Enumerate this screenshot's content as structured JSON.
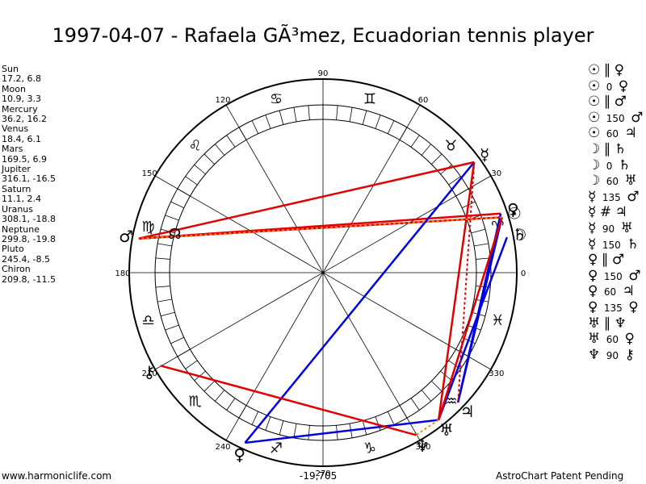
{
  "title": "1997-04-07 - Rafaela GÃ³mez, Ecuadorian tennis player",
  "positions": [
    {
      "name": "Sun",
      "value": "17.2, 6.8"
    },
    {
      "name": "Moon",
      "value": "10.9, 3.3"
    },
    {
      "name": "Mercury",
      "value": "36.2, 16.2"
    },
    {
      "name": "Venus",
      "value": "18.4, 6.1"
    },
    {
      "name": "Mars",
      "value": "169.5, 6.9"
    },
    {
      "name": "Jupiter",
      "value": "316.1, -16.5"
    },
    {
      "name": "Saturn",
      "value": "11.1, 2.4"
    },
    {
      "name": "Uranus",
      "value": "308.1, -18.8"
    },
    {
      "name": "Neptune",
      "value": "299.8, -19.8"
    },
    {
      "name": "Pluto",
      "value": "245.4, -8.5"
    },
    {
      "name": "Chiron",
      "value": "209.8, -11.5"
    }
  ],
  "aspects": [
    {
      "p1": "☉",
      "type": "∥",
      "value": "",
      "p2": "♀"
    },
    {
      "p1": "☉",
      "type": "",
      "value": "0",
      "p2": "♀"
    },
    {
      "p1": "☉",
      "type": "∥",
      "value": "",
      "p2": "♂"
    },
    {
      "p1": "☉",
      "type": "",
      "value": "150",
      "p2": "♂"
    },
    {
      "p1": "☉",
      "type": "",
      "value": "60",
      "p2": "♃"
    },
    {
      "p1": "☽",
      "type": "∥",
      "value": "",
      "p2": "♄"
    },
    {
      "p1": "☽",
      "type": "",
      "value": "0",
      "p2": "♄"
    },
    {
      "p1": "☽",
      "type": "",
      "value": "60",
      "p2": "♅"
    },
    {
      "p1": "☿",
      "type": "",
      "value": "135",
      "p2": "♂"
    },
    {
      "p1": "☿",
      "type": "#",
      "value": "",
      "p2": "♃"
    },
    {
      "p1": "☿",
      "type": "",
      "value": "90",
      "p2": "♅"
    },
    {
      "p1": "☿",
      "type": "",
      "value": "150",
      "p2": "♄"
    },
    {
      "p1": "♀",
      "type": "∥",
      "value": "",
      "p2": "♂"
    },
    {
      "p1": "♀",
      "type": "",
      "value": "150",
      "p2": "♂"
    },
    {
      "p1": "♀",
      "type": "",
      "value": "60",
      "p2": "♃"
    },
    {
      "p1": "♀",
      "type": "",
      "value": "135",
      "p2": "♀"
    },
    {
      "p1": "♅",
      "type": "∥",
      "value": "",
      "p2": "♆"
    },
    {
      "p1": "♅",
      "type": "",
      "value": "60",
      "p2": "♀"
    },
    {
      "p1": "♆",
      "type": "",
      "value": "90",
      "p2": "⚷"
    }
  ],
  "wheel": {
    "degree_labels": [
      "90",
      "60",
      "30",
      "0",
      "330",
      "300",
      "270",
      "240",
      "210",
      "180",
      "150",
      "120"
    ],
    "sign_glyphs": [
      "♈",
      "♉",
      "♊",
      "♋",
      "♌",
      "♍",
      "♎",
      "♏",
      "♐",
      "♑",
      "♒",
      "♓"
    ],
    "node_glyph": "☊",
    "planets": [
      {
        "key": "sun",
        "glyph": "☉",
        "lon": 17.2
      },
      {
        "key": "moon",
        "glyph": "☽",
        "lon": 10.9
      },
      {
        "key": "mercury",
        "glyph": "☿",
        "lon": 36.2
      },
      {
        "key": "venus",
        "glyph": "♀",
        "lon": 18.4
      },
      {
        "key": "mars",
        "glyph": "♂",
        "lon": 169.5
      },
      {
        "key": "jupiter",
        "glyph": "♃",
        "lon": 316.1
      },
      {
        "key": "saturn",
        "glyph": "♄",
        "lon": 11.1
      },
      {
        "key": "uranus",
        "glyph": "♅",
        "lon": 308.1
      },
      {
        "key": "neptune",
        "glyph": "♆",
        "lon": 299.8
      },
      {
        "key": "pluto",
        "glyph": "♀",
        "lon": 245.4
      },
      {
        "key": "chiron",
        "glyph": "⚷",
        "lon": 209.8
      }
    ],
    "aspect_lines": [
      {
        "a": "sun",
        "b": "mars",
        "color": "#e00000",
        "style": "solid"
      },
      {
        "a": "venus",
        "b": "mars",
        "color": "#e00000",
        "style": "solid"
      },
      {
        "a": "mercury",
        "b": "mars",
        "color": "#e00000",
        "style": "solid"
      },
      {
        "a": "moon",
        "b": "uranus",
        "color": "#0000e0",
        "style": "solid"
      },
      {
        "a": "sun",
        "b": "jupiter",
        "color": "#0000e0",
        "style": "solid"
      },
      {
        "a": "venus",
        "b": "jupiter",
        "color": "#0000e0",
        "style": "solid"
      },
      {
        "a": "mercury",
        "b": "pluto",
        "color": "#0000e0",
        "style": "solid"
      },
      {
        "a": "uranus",
        "b": "pluto",
        "color": "#0000e0",
        "style": "solid"
      },
      {
        "a": "sun",
        "b": "uranus",
        "color": "#e00000",
        "style": "solid"
      },
      {
        "a": "mercury",
        "b": "uranus",
        "color": "#e00000",
        "style": "solid"
      },
      {
        "a": "neptune",
        "b": "chiron",
        "color": "#e00000",
        "style": "solid"
      },
      {
        "a": "mercury",
        "b": "jupiter",
        "color": "#e00000",
        "style": "dotted"
      },
      {
        "a": "sun",
        "b": "mars",
        "color": "#e09000",
        "style": "dotted"
      },
      {
        "a": "uranus",
        "b": "neptune",
        "color": "#e09000",
        "style": "dotted"
      }
    ]
  },
  "footer": {
    "website": "www.harmoniclife.com",
    "coord": "-19,705",
    "credit": "AstroChart Patent Pending"
  }
}
